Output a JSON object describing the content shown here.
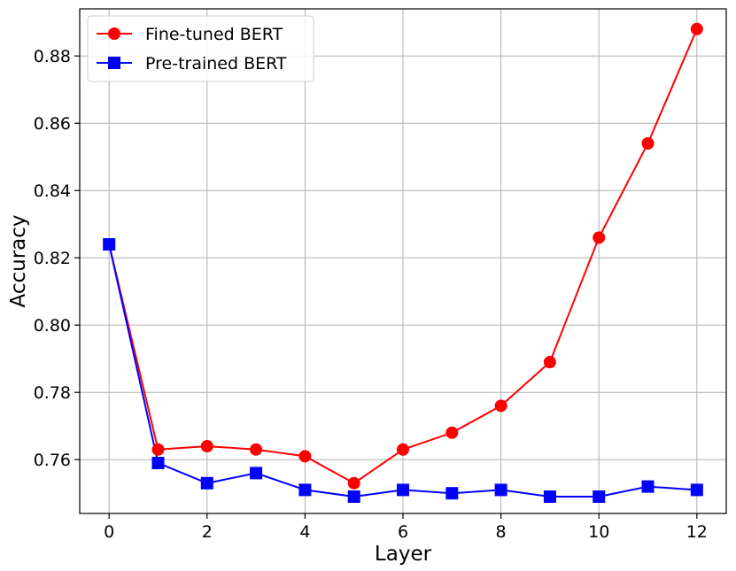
{
  "chart_data": {
    "type": "line",
    "title": "",
    "xlabel": "Layer",
    "ylabel": "Accuracy",
    "xlim": [
      -0.6,
      12.6
    ],
    "ylim": [
      0.744,
      0.894
    ],
    "x_ticks": [
      0,
      2,
      4,
      6,
      8,
      10,
      12
    ],
    "x_tick_labels": [
      "0",
      "2",
      "4",
      "6",
      "8",
      "10",
      "12"
    ],
    "y_ticks": [
      0.76,
      0.78,
      0.8,
      0.82,
      0.84,
      0.86,
      0.88
    ],
    "y_tick_labels": [
      "0.76",
      "0.78",
      "0.80",
      "0.82",
      "0.84",
      "0.86",
      "0.88"
    ],
    "grid": true,
    "legend_position": "top-left",
    "x": [
      0,
      1,
      2,
      3,
      4,
      5,
      6,
      7,
      8,
      9,
      10,
      11,
      12
    ],
    "series": [
      {
        "name": "Fine-tuned BERT",
        "color": "#ff0000",
        "marker": "circle",
        "values": [
          0.824,
          0.763,
          0.764,
          0.763,
          0.761,
          0.753,
          0.763,
          0.768,
          0.776,
          0.789,
          0.826,
          0.854,
          0.888
        ]
      },
      {
        "name": "Pre-trained BERT",
        "color": "#0000ff",
        "marker": "square",
        "values": [
          0.824,
          0.759,
          0.753,
          0.756,
          0.751,
          0.749,
          0.751,
          0.75,
          0.751,
          0.749,
          0.749,
          0.752,
          0.751
        ]
      }
    ]
  }
}
